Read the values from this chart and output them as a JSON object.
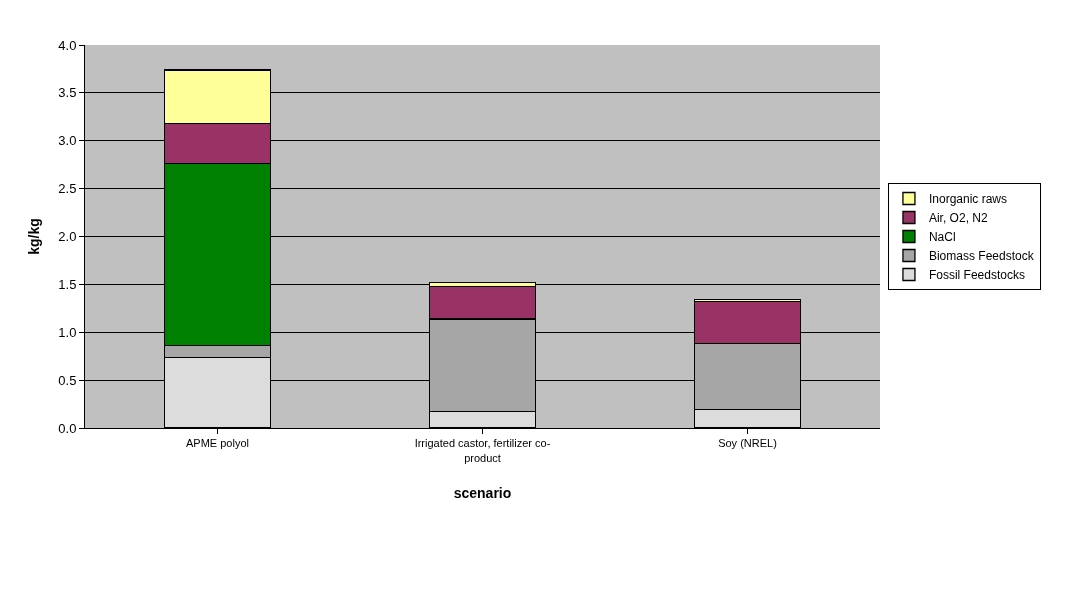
{
  "chart_data": {
    "type": "bar",
    "stacked": true,
    "xlabel": "scenario",
    "ylabel": "kg/kg",
    "categories": [
      "APME polyol",
      "Irrigated castor, fertilizer co-product",
      "Soy (NREL)"
    ],
    "series": [
      {
        "name": "Fossil Feedstocks",
        "color": "#dcdcdc",
        "values": [
          0.74,
          0.17,
          0.19
        ]
      },
      {
        "name": "Biomass Feedstock",
        "color": "#a6a6a6",
        "values": [
          0.12,
          0.97,
          0.69
        ]
      },
      {
        "name": "NaCl",
        "color": "#008000",
        "values": [
          1.9,
          0.0,
          0.0
        ]
      },
      {
        "name": "Air, O2, N2",
        "color": "#993366",
        "values": [
          0.42,
          0.34,
          0.44
        ]
      },
      {
        "name": "Inorganic raws",
        "color": "#ffff99",
        "values": [
          0.56,
          0.04,
          0.02
        ]
      }
    ],
    "ylim": [
      0,
      4.0
    ],
    "yticks": [
      {
        "value": 0,
        "label": "0.0"
      },
      {
        "value": 0.5,
        "label": "0.5"
      },
      {
        "value": 1.0,
        "label": "1.0"
      },
      {
        "value": 1.5,
        "label": "1.5"
      },
      {
        "value": 2.0,
        "label": "2.0"
      },
      {
        "value": 2.5,
        "label": "2.5"
      },
      {
        "value": 3.0,
        "label": "3.0"
      },
      {
        "value": 3.5,
        "label": "3.5"
      },
      {
        "value": 4.0,
        "label": "4.0"
      }
    ],
    "grid": "y",
    "legend": "right"
  }
}
